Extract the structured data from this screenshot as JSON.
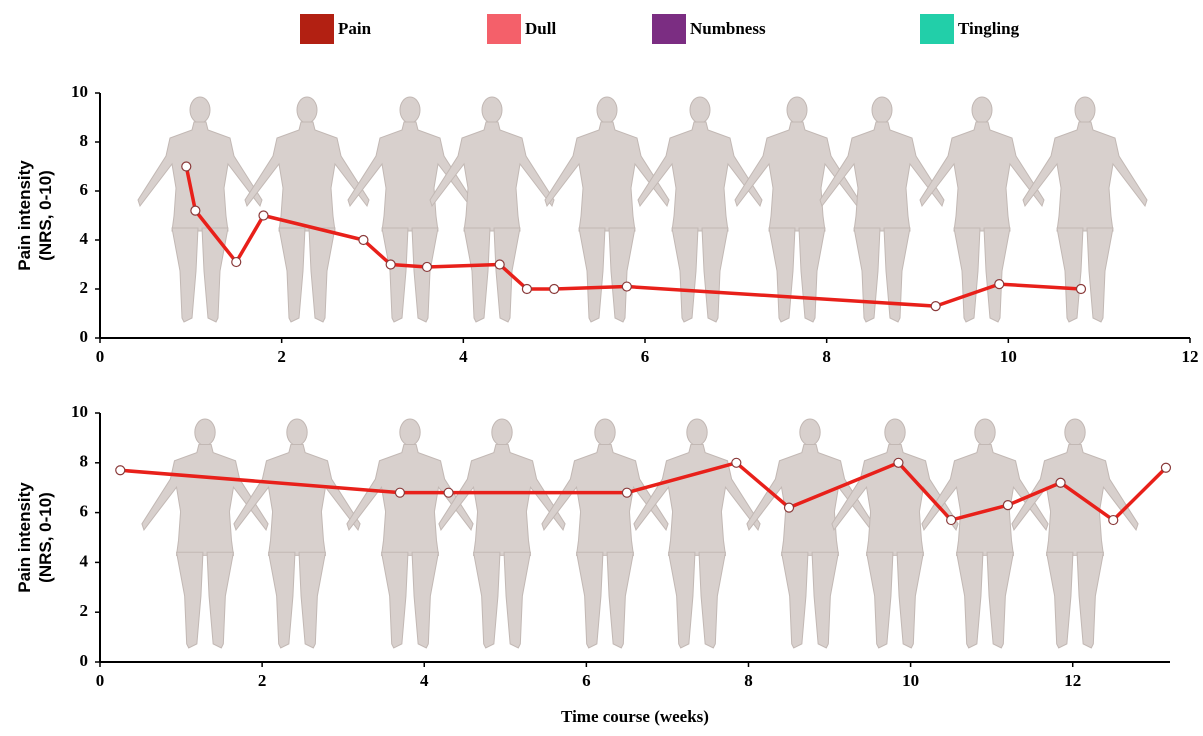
{
  "legend": [
    {
      "label": "Pain",
      "color": "#b22012"
    },
    {
      "label": "Dull",
      "color": "#f4606a"
    },
    {
      "label": "Numbness",
      "color": "#7b2d82"
    },
    {
      "label": "Tingling",
      "color": "#22cfa9"
    }
  ],
  "chart_data": [
    {
      "type": "line",
      "ylabel": [
        "Pain intensity",
        "(NRS, 0-10)"
      ],
      "x": [
        0.95,
        1.05,
        1.5,
        1.8,
        2.9,
        3.2,
        3.6,
        4.4,
        4.7,
        5.0,
        5.8,
        9.2,
        9.9,
        10.8
      ],
      "values": [
        7.0,
        5.2,
        3.1,
        5.0,
        4.0,
        3.0,
        2.9,
        3.0,
        2.0,
        2.0,
        2.1,
        1.3,
        2.2,
        2.0
      ],
      "color": "#e8201a",
      "xlim": [
        0,
        12
      ],
      "xticks": [
        0,
        2,
        4,
        6,
        8,
        10,
        12
      ],
      "ylim": [
        0,
        10
      ],
      "yticks": [
        0,
        2,
        4,
        6,
        8,
        10
      ]
    },
    {
      "type": "line",
      "ylabel": [
        "Pain intensity",
        "(NRS, 0-10)"
      ],
      "xlabel": "Time course (weeks)",
      "x": [
        0.25,
        3.7,
        4.3,
        6.5,
        7.85,
        8.5,
        9.85,
        10.5,
        11.2,
        11.85,
        12.5,
        13.15
      ],
      "values": [
        7.7,
        6.8,
        6.8,
        6.8,
        8.0,
        6.2,
        8.0,
        5.7,
        6.3,
        7.2,
        5.7,
        7.8
      ],
      "color": "#e8201a",
      "xlim": [
        0,
        13.2
      ],
      "xticks": [
        0,
        2,
        4,
        6,
        8,
        10,
        12
      ],
      "ylim": [
        0,
        10
      ],
      "yticks": [
        0,
        2,
        4,
        6,
        8,
        10
      ]
    }
  ]
}
